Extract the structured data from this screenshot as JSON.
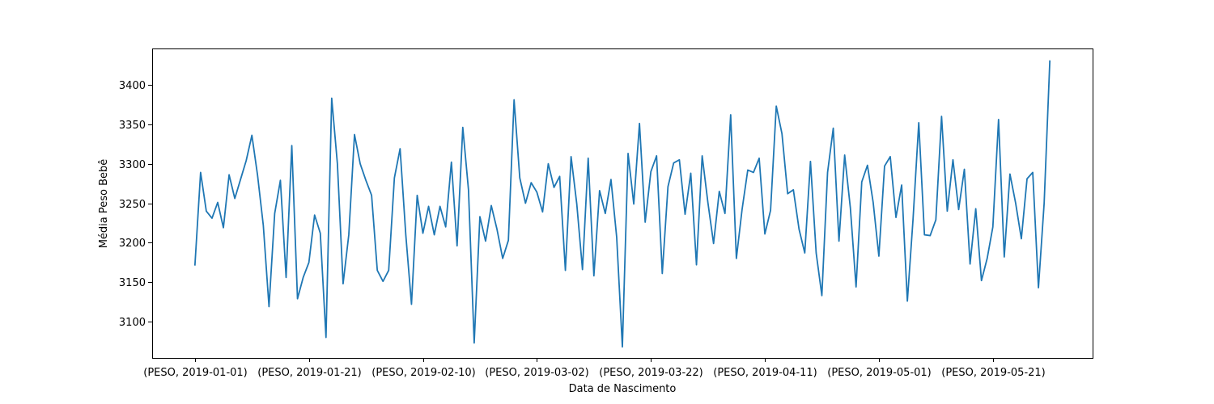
{
  "chart_data": {
    "type": "line",
    "xlabel": "Data de Nascimento",
    "ylabel": "Média Peso Bebê",
    "y_ticks": [
      3100,
      3150,
      3200,
      3250,
      3300,
      3350,
      3400
    ],
    "ylim": [
      3054,
      3446
    ],
    "x_ticks": [
      {
        "index": 0,
        "label": "(PESO, 2019-01-01)"
      },
      {
        "index": 20,
        "label": "(PESO, 2019-01-21)"
      },
      {
        "index": 40,
        "label": "(PESO, 2019-02-10)"
      },
      {
        "index": 60,
        "label": "(PESO, 2019-03-02)"
      },
      {
        "index": 80,
        "label": "(PESO, 2019-03-22)"
      },
      {
        "index": 100,
        "label": "(PESO, 2019-04-11)"
      },
      {
        "index": 120,
        "label": "(PESO, 2019-05-01)"
      },
      {
        "index": 140,
        "label": "(PESO, 2019-05-21)"
      }
    ],
    "xlim": [
      -7.5,
      157.5
    ],
    "grid": false,
    "colors": {
      "line": "#1f77b4"
    },
    "series": [
      {
        "values": [
          3171,
          3289,
          3240,
          3231,
          3251,
          3219,
          3286,
          3256,
          3280,
          3304,
          3336,
          3285,
          3222,
          3119,
          3237,
          3279,
          3156,
          3323,
          3129,
          3156,
          3175,
          3235,
          3212,
          3080,
          3383,
          3300,
          3148,
          3210,
          3337,
          3300,
          3279,
          3260,
          3165,
          3151,
          3165,
          3282,
          3319,
          3210,
          3122,
          3260,
          3212,
          3246,
          3210,
          3246,
          3220,
          3302,
          3196,
          3346,
          3267,
          3073,
          3233,
          3202,
          3247,
          3217,
          3180,
          3203,
          3381,
          3282,
          3250,
          3276,
          3264,
          3239,
          3300,
          3270,
          3284,
          3165,
          3309,
          3249,
          3166,
          3307,
          3158,
          3266,
          3237,
          3280,
          3207,
          3068,
          3313,
          3249,
          3351,
          3226,
          3290,
          3310,
          3161,
          3271,
          3301,
          3305,
          3236,
          3288,
          3172,
          3310,
          3251,
          3199,
          3265,
          3237,
          3362,
          3180,
          3242,
          3292,
          3289,
          3307,
          3211,
          3241,
          3373,
          3338,
          3262,
          3267,
          3217,
          3187,
          3303,
          3187,
          3133,
          3289,
          3345,
          3202,
          3311,
          3244,
          3144,
          3277,
          3298,
          3251,
          3183,
          3297,
          3309,
          3232,
          3273,
          3126,
          3230,
          3352,
          3210,
          3209,
          3229,
          3360,
          3240,
          3305,
          3242,
          3293,
          3173,
          3243,
          3152,
          3180,
          3220,
          3356,
          3182,
          3287,
          3250,
          3205,
          3281,
          3289,
          3143,
          3250,
          3431
        ]
      }
    ]
  }
}
